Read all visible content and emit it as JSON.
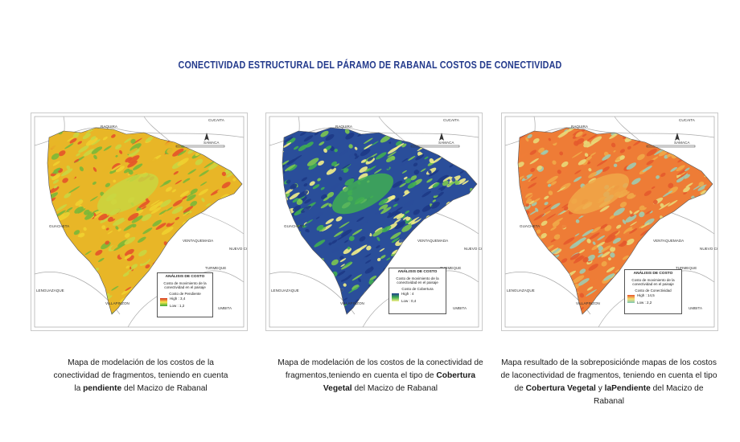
{
  "page_title": "CONECTIVIDAD ESTRUCTURAL DEL PÁRAMO DE RABANAL COSTOS DE CONECTIVIDAD",
  "maps": [
    {
      "id": "pendiente",
      "legend_title": "ANÁLISIS DE COSTO",
      "legend_sub": "Costo de movimiento de la conectividad en el paisaje",
      "legend_var": "Costo de Pendiente",
      "legend_high": "High : 3,4",
      "legend_low": "Low : 1,2",
      "ramp_colors": [
        "#d7301f",
        "#f5e84a",
        "#3aa63a"
      ],
      "fill_colors": [
        "#e8b627",
        "#c9d641",
        "#e4532a",
        "#7ab838",
        "#f0d030"
      ],
      "caption_parts": [
        "Mapa de modelación de los costos de la conectividad de fragmentos, teniendo en cuenta la ",
        "pendiente",
        " del Macizo de Rabanal"
      ]
    },
    {
      "id": "cobertura",
      "legend_title": "ANÁLISIS DE COSTO",
      "legend_sub": "Costo de movimiento de la conectividad en el paisaje",
      "legend_var": "Costo de Cobertura",
      "legend_high": "High : 4",
      "legend_low": "Low : 0,4",
      "ramp_colors": [
        "#1f3f8f",
        "#3fae52",
        "#f5f08a"
      ],
      "fill_colors": [
        "#2a4e9a",
        "#3fae52",
        "#f3ef88",
        "#1d3a86",
        "#7cc850"
      ],
      "caption_parts": [
        "Mapa de modelación de los costos de la conectividad de fragmentos,teniendo en cuenta el tipo de ",
        "Cobertura Vegetal",
        " del Macizo de Rabanal"
      ]
    },
    {
      "id": "conectividad",
      "legend_title": "ANÁLISIS DE COSTO",
      "legend_sub": "Costo de movimiento de la conectividad en el paisaje",
      "legend_var": "Costo de Conectividad",
      "legend_high": "High : 14,5",
      "legend_low": "Low : 2,2",
      "ramp_colors": [
        "#e8562a",
        "#f5e070",
        "#7fc8b8"
      ],
      "fill_colors": [
        "#ee7c36",
        "#f0a848",
        "#9fcbb0",
        "#e45a2c",
        "#e8d878"
      ],
      "caption_parts": [
        "Mapa resultado de la sobreposicióndе mapas de los costos de laconectividad de fragmentos, teniendo en cuenta el tipo de ",
        "Cobertura Vegetal",
        " y ",
        "laPendiente",
        " del Macizo de Rabanal"
      ]
    }
  ],
  "place_labels": {
    "raquira": "RAQUIRA",
    "cucaita": "CUCAITA",
    "samaca": "SAMACA",
    "guacheta": "GUACHETA",
    "ventaquemada": "VENTAQUEMADA",
    "turmeque": "TURMEQUE",
    "nuevo_colon": "NUEVO COLON",
    "lenguazaque": "LENGUAZAQUE",
    "villapinzon": "VILLAPINZON",
    "umbita": "UMBITA"
  }
}
